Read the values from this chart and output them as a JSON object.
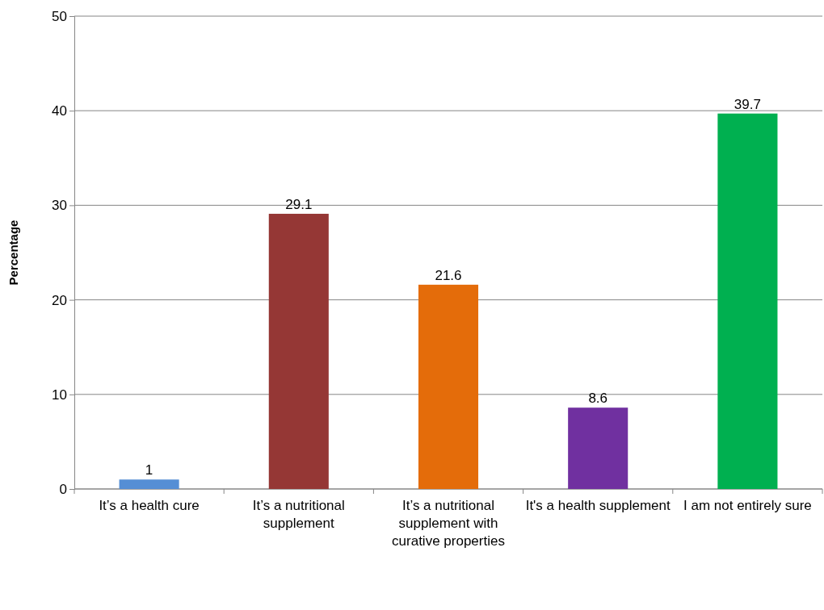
{
  "chart_data": {
    "type": "bar",
    "ylabel": "Percentage",
    "categories": [
      "It’s a health cure",
      "It’s a nutritional supplement",
      "It’s a nutritional supplement with curative properties",
      "It's a health supplement",
      "I am not entirely sure"
    ],
    "values": [
      1,
      29.1,
      21.6,
      8.6,
      39.7
    ],
    "colors": [
      "#558ed5",
      "#953735",
      "#e46c0a",
      "#7030a0",
      "#00b050"
    ],
    "ylim": [
      0,
      50
    ],
    "yticks": [
      0,
      10,
      20,
      30,
      40,
      50
    ],
    "grid": "y",
    "data_labels": true
  }
}
